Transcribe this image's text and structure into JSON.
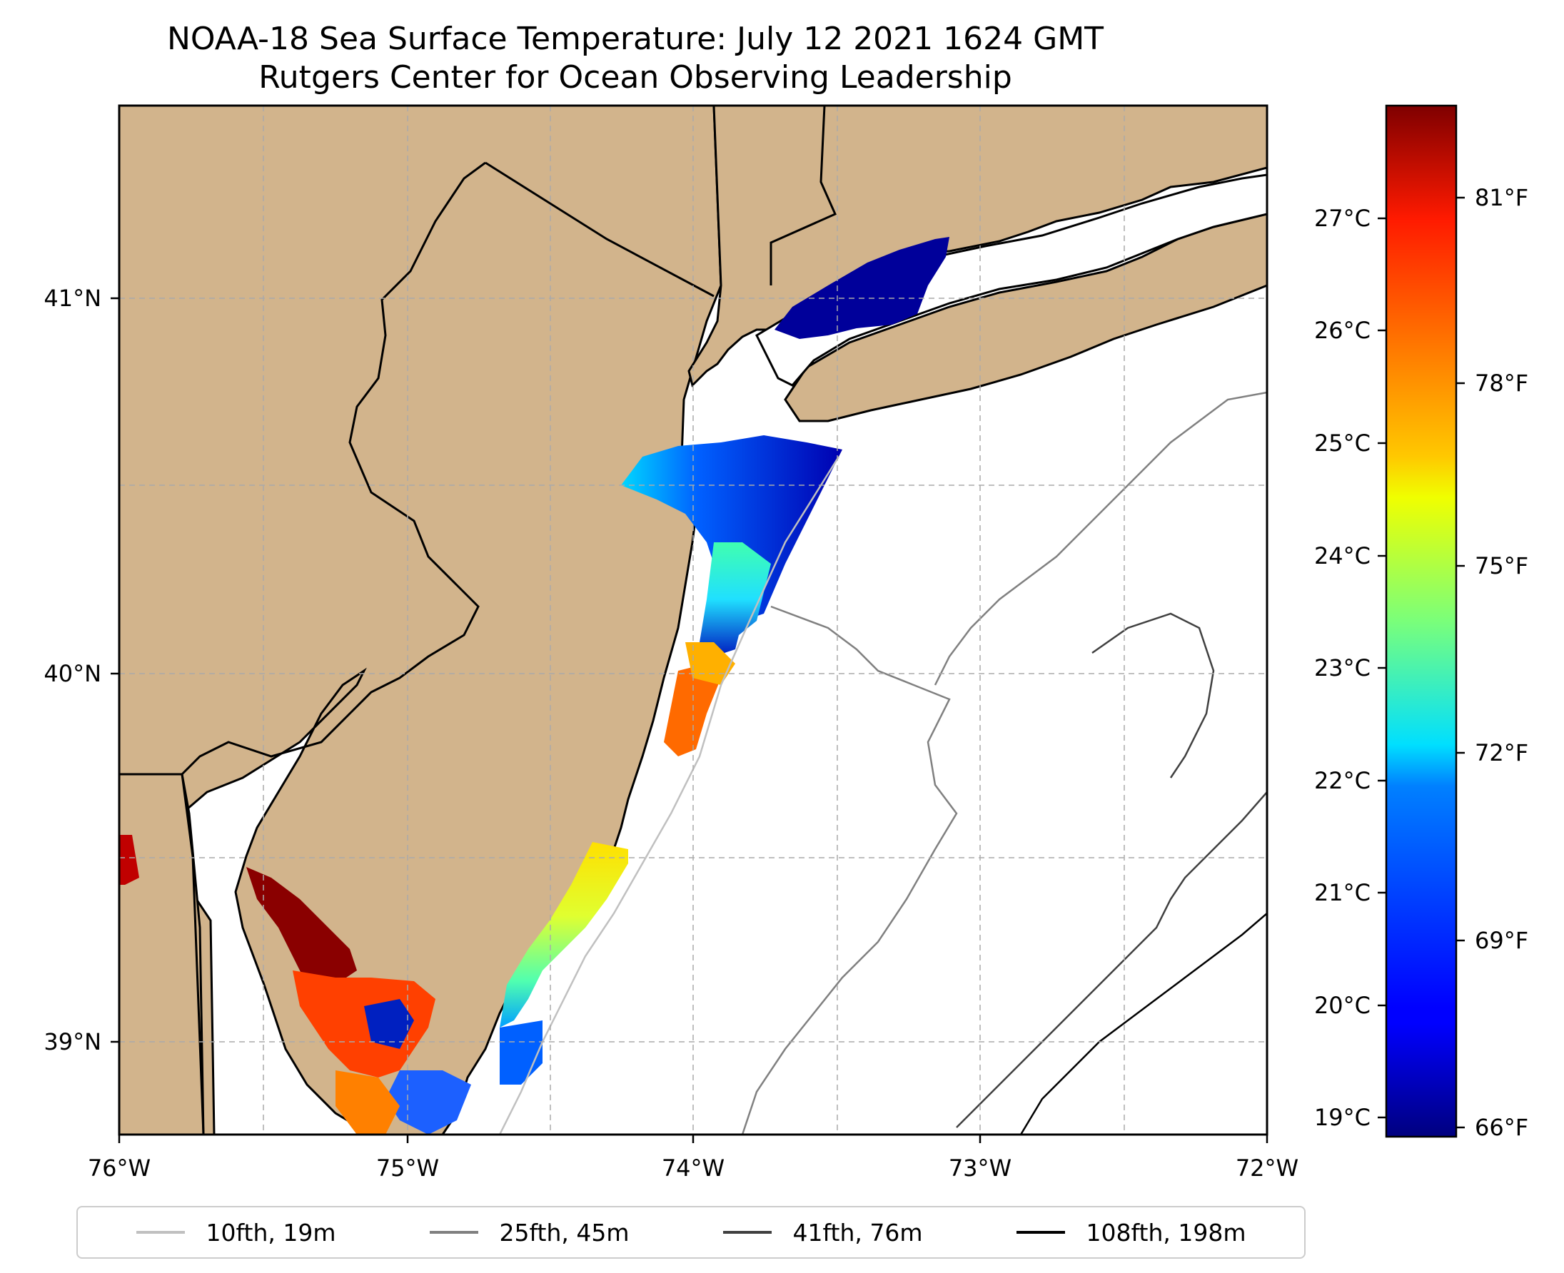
{
  "title": {
    "line1": "NOAA-18 Sea Surface Temperature: July 12 2021 1624 GMT",
    "line2": "Rutgers Center for Ocean Observing Leadership"
  },
  "map": {
    "lon_range": [
      -76,
      -72
    ],
    "lat_range": [
      38.7,
      41.5
    ],
    "land_color": "#d2b48c",
    "ocean_color": "#ffffff",
    "gridlines": true,
    "x_ticks": [
      "76°W",
      "75°W",
      "74°W",
      "73°W",
      "72°W"
    ],
    "y_ticks": [
      "41°N",
      "40°N",
      "39°N"
    ]
  },
  "colorbar": {
    "colormap": "jet",
    "celsius_ticks": [
      "27°C",
      "26°C",
      "25°C",
      "24°C",
      "23°C",
      "22°C",
      "21°C",
      "20°C",
      "19°C"
    ],
    "fahrenheit_ticks": [
      "81°F",
      "78°F",
      "75°F",
      "72°F",
      "69°F",
      "66°F"
    ],
    "range_c": [
      18.9,
      28.0
    ]
  },
  "legend": {
    "items": [
      {
        "label": "10fth, 19m",
        "color": "#c0c0c0"
      },
      {
        "label": "25fth, 45m",
        "color": "#808080"
      },
      {
        "label": "41fth, 76m",
        "color": "#404040"
      },
      {
        "label": "108fth, 198m",
        "color": "#000000"
      }
    ]
  }
}
